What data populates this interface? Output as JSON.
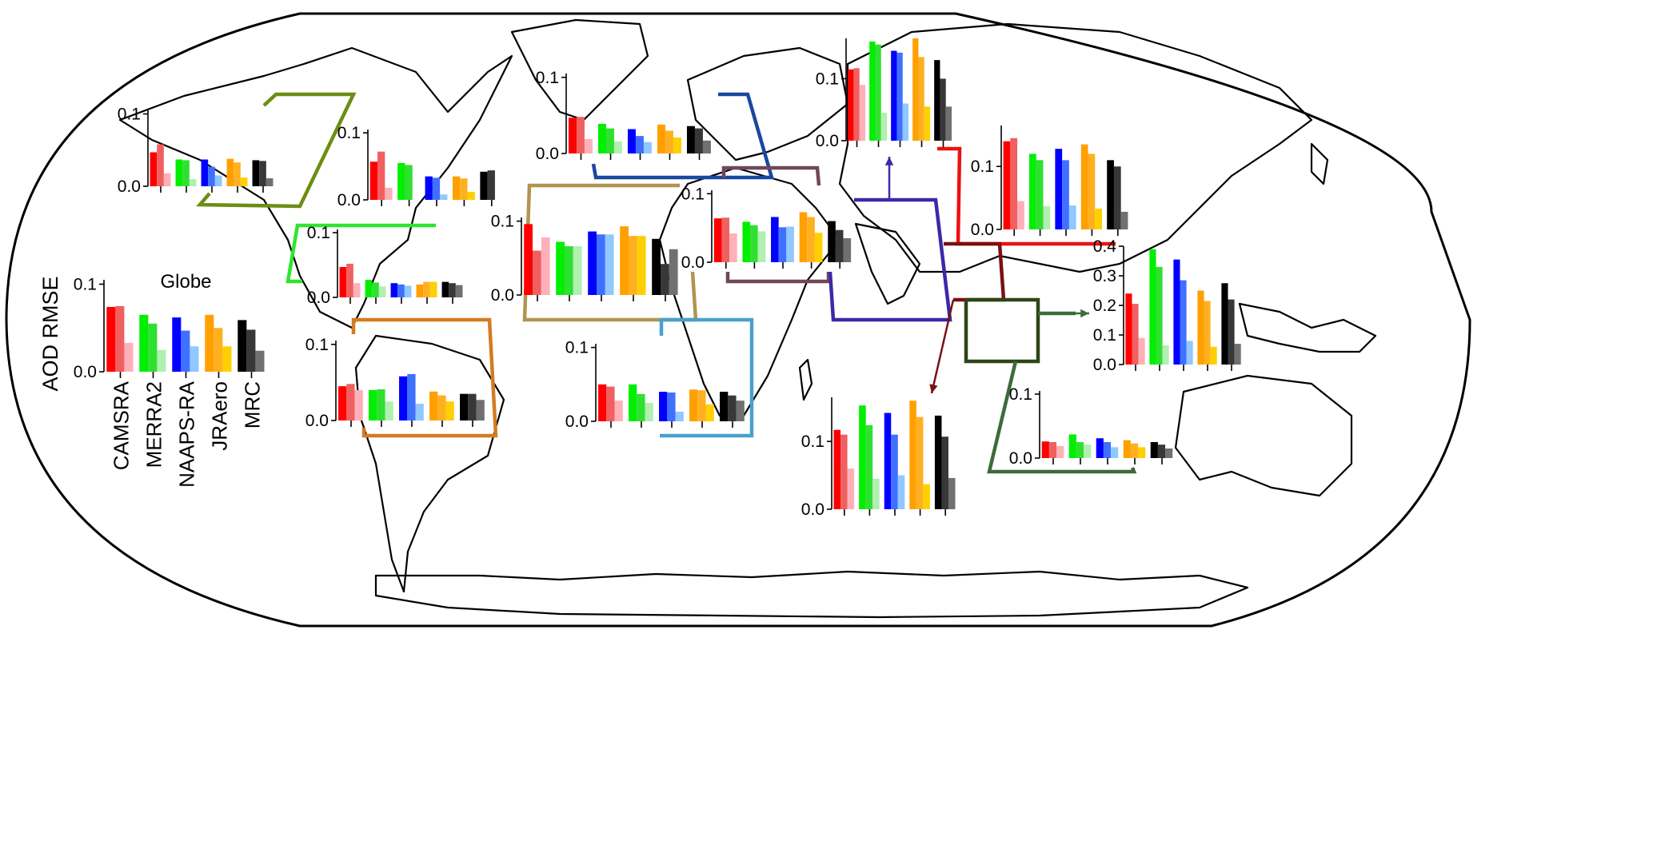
{
  "figure": {
    "ylabel": "AOD RMSE",
    "model_names": [
      "CAMSRA",
      "MERRA2",
      "NAAPS-RA",
      "JRAero",
      "MRC"
    ],
    "model_colors": [
      [
        "#ff0000",
        "#f06060",
        "#ffb0b8"
      ],
      [
        "#00ee00",
        "#30e030",
        "#b0f0b0"
      ],
      [
        "#0000ff",
        "#4070ff",
        "#90c8ff"
      ],
      [
        "#ffa000",
        "#ffb020",
        "#ffd000"
      ],
      [
        "#000000",
        "#383838",
        "#707070"
      ]
    ]
  },
  "chart_data": [
    {
      "type": "bar",
      "title": "Globe",
      "ytick_labels": [
        "0.0",
        "0.1"
      ],
      "ylim": [
        0,
        0.105
      ],
      "values": [
        [
          0.074,
          0.075,
          0.033
        ],
        [
          0.065,
          0.055,
          0.025
        ],
        [
          0.062,
          0.047,
          0.029
        ],
        [
          0.065,
          0.05,
          0.029
        ],
        [
          0.059,
          0.048,
          0.024
        ]
      ]
    },
    {
      "type": "bar",
      "title": "",
      "ytick_labels": [
        "0.0",
        "0.1"
      ],
      "ylim": [
        0,
        0.105
      ],
      "values": [
        [
          0.047,
          0.058,
          0.018
        ],
        [
          0.037,
          0.036,
          0.01
        ],
        [
          0.037,
          0.027,
          0.015
        ],
        [
          0.038,
          0.033,
          0.012
        ],
        [
          0.036,
          0.035,
          0.011
        ]
      ]
    },
    {
      "type": "bar",
      "title": "",
      "ytick_labels": [
        "0.0",
        "0.1"
      ],
      "ylim": [
        0,
        0.105
      ],
      "values": [
        [
          0.057,
          0.072,
          0.018
        ],
        [
          0.055,
          0.052,
          0.0
        ],
        [
          0.035,
          0.033,
          0.008
        ],
        [
          0.035,
          0.032,
          0.012
        ],
        [
          0.042,
          0.044,
          0.0
        ]
      ]
    },
    {
      "type": "bar",
      "title": "",
      "ytick_labels": [
        "0.0",
        "0.1"
      ],
      "ylim": [
        0,
        0.105
      ],
      "values": [
        [
          0.047,
          0.052,
          0.022
        ],
        [
          0.027,
          0.023,
          0.017
        ],
        [
          0.022,
          0.02,
          0.018
        ],
        [
          0.02,
          0.024,
          0.024
        ],
        [
          0.024,
          0.022,
          0.019
        ]
      ]
    },
    {
      "type": "bar",
      "title": "",
      "ytick_labels": [
        "0.0",
        "0.1"
      ],
      "ylim": [
        0,
        0.105
      ],
      "values": [
        [
          0.045,
          0.048,
          0.04
        ],
        [
          0.04,
          0.041,
          0.025
        ],
        [
          0.058,
          0.061,
          0.022
        ],
        [
          0.038,
          0.033,
          0.025
        ],
        [
          0.035,
          0.035,
          0.027
        ]
      ]
    },
    {
      "type": "bar",
      "title": "",
      "ytick_labels": [
        "0.0",
        "0.1"
      ],
      "ylim": [
        0,
        0.105
      ],
      "values": [
        [
          0.096,
          0.06,
          0.078
        ],
        [
          0.072,
          0.066,
          0.066
        ],
        [
          0.086,
          0.082,
          0.082
        ],
        [
          0.093,
          0.08,
          0.08
        ],
        [
          0.076,
          0.042,
          0.062
        ]
      ]
    },
    {
      "type": "bar",
      "title": "",
      "ytick_labels": [
        "0.0",
        "0.1"
      ],
      "ylim": [
        0,
        0.105
      ],
      "values": [
        [
          0.047,
          0.048,
          0.019
        ],
        [
          0.039,
          0.033,
          0.016
        ],
        [
          0.032,
          0.023,
          0.015
        ],
        [
          0.038,
          0.03,
          0.021
        ],
        [
          0.036,
          0.033,
          0.017
        ]
      ]
    },
    {
      "type": "bar",
      "title": "",
      "ytick_labels": [
        "0.0",
        "0.1"
      ],
      "ylim": [
        0,
        0.105
      ],
      "values": [
        [
          0.05,
          0.047,
          0.028
        ],
        [
          0.05,
          0.037,
          0.025
        ],
        [
          0.04,
          0.039,
          0.013
        ],
        [
          0.043,
          0.042,
          0.023
        ],
        [
          0.04,
          0.035,
          0.028
        ]
      ]
    },
    {
      "type": "bar",
      "title": "",
      "ytick_labels": [
        "0.0",
        "0.1"
      ],
      "ylim": [
        0,
        0.105
      ],
      "values": [
        [
          0.064,
          0.065,
          0.042
        ],
        [
          0.059,
          0.054,
          0.045
        ],
        [
          0.066,
          0.051,
          0.052
        ],
        [
          0.073,
          0.066,
          0.043
        ],
        [
          0.06,
          0.047,
          0.035
        ]
      ]
    },
    {
      "type": "bar",
      "title": "",
      "ytick_labels": [
        "0.0",
        "0.1"
      ],
      "ylim": [
        0,
        0.165
      ],
      "values": [
        [
          0.115,
          0.117,
          0.09
        ],
        [
          0.16,
          0.155,
          0.045
        ],
        [
          0.145,
          0.142,
          0.06
        ],
        [
          0.165,
          0.135,
          0.055
        ],
        [
          0.13,
          0.1,
          0.055
        ]
      ]
    },
    {
      "type": "bar",
      "title": "",
      "ytick_labels": [
        "0.0",
        "0.1"
      ],
      "ylim": [
        0,
        0.165
      ],
      "values": [
        [
          0.14,
          0.145,
          0.045
        ],
        [
          0.12,
          0.11,
          0.037
        ],
        [
          0.128,
          0.11,
          0.038
        ],
        [
          0.135,
          0.12,
          0.033
        ],
        [
          0.11,
          0.1,
          0.028
        ]
      ]
    },
    {
      "type": "bar",
      "title": "",
      "ytick_labels": [
        "0.0",
        "0.1",
        "0.2",
        "0.3",
        "0.4"
      ],
      "ylim": [
        0,
        0.4
      ],
      "values": [
        [
          0.24,
          0.205,
          0.09
        ],
        [
          0.39,
          0.33,
          0.065
        ],
        [
          0.355,
          0.285,
          0.08
        ],
        [
          0.25,
          0.215,
          0.06
        ],
        [
          0.275,
          0.22,
          0.07
        ]
      ]
    },
    {
      "type": "bar",
      "title": "",
      "ytick_labels": [
        "0.0",
        "0.1"
      ],
      "ylim": [
        0,
        0.165
      ],
      "values": [
        [
          0.117,
          0.11,
          0.06
        ],
        [
          0.153,
          0.124,
          0.045
        ],
        [
          0.142,
          0.11,
          0.05
        ],
        [
          0.16,
          0.136,
          0.037
        ],
        [
          0.138,
          0.107,
          0.046
        ]
      ]
    },
    {
      "type": "bar",
      "title": "",
      "ytick_labels": [
        "0.0",
        "0.1"
      ],
      "ylim": [
        0,
        0.105
      ],
      "values": [
        [
          0.026,
          0.025,
          0.019
        ],
        [
          0.037,
          0.025,
          0.021
        ],
        [
          0.031,
          0.025,
          0.017
        ],
        [
          0.028,
          0.023,
          0.017
        ],
        [
          0.025,
          0.021,
          0.015
        ]
      ]
    }
  ]
}
